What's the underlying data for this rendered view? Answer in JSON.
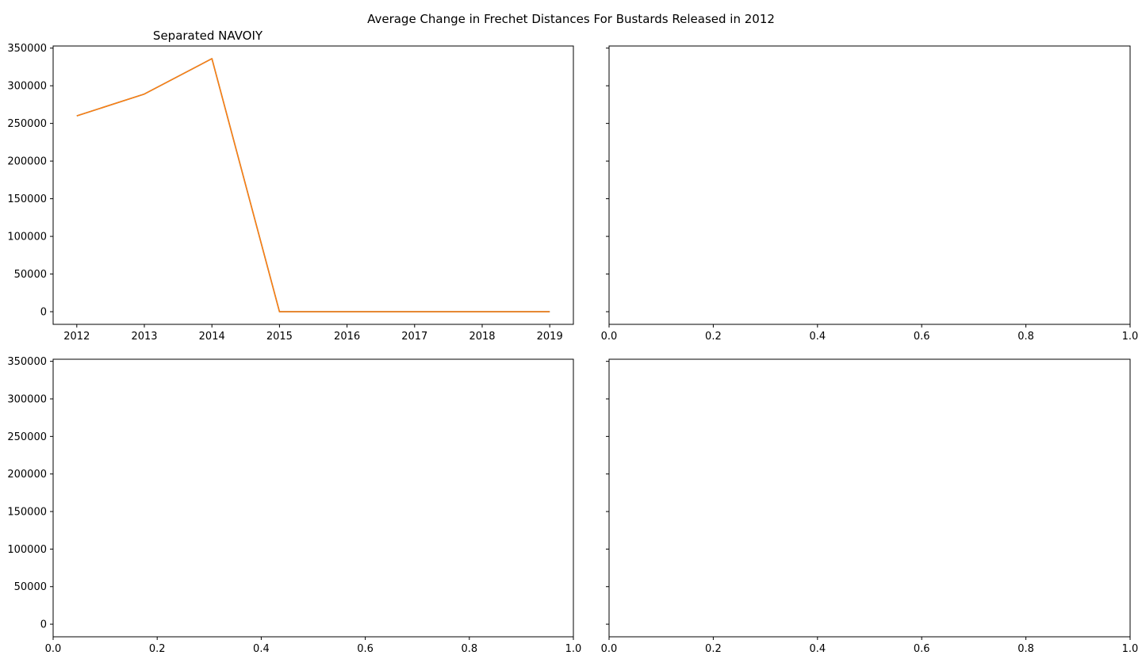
{
  "figure": {
    "suptitle": "Average Change in Frechet Distances For Bustards Released in 2012"
  },
  "chart_data": [
    {
      "type": "line",
      "title": "Separated NAVOIY",
      "xlabel": "",
      "ylabel": "",
      "x": [
        2012,
        2013,
        2014,
        2015,
        2016,
        2017,
        2018,
        2019
      ],
      "series": [
        {
          "values": [
            260000,
            289000,
            336000,
            0,
            0,
            0,
            0,
            0
          ],
          "color": "#1f77b4"
        },
        {
          "values": [
            260000,
            289000,
            336000,
            0,
            0,
            0,
            0,
            0
          ],
          "color": "#ff7f0e"
        }
      ],
      "xlim": [
        2011.65,
        2019.35
      ],
      "ylim": [
        -16800,
        352800
      ],
      "xticks": [
        "2012",
        "2013",
        "2014",
        "2015",
        "2016",
        "2017",
        "2018",
        "2019"
      ],
      "yticks": [
        "0",
        "50000",
        "100000",
        "150000",
        "200000",
        "250000",
        "300000",
        "350000"
      ],
      "grid": false
    },
    {
      "type": "line",
      "title": "",
      "series": [],
      "xlim": [
        0,
        1
      ],
      "ylim": [
        -16800,
        352800
      ],
      "xticks": [
        "0.0",
        "0.2",
        "0.4",
        "0.6",
        "0.8",
        "1.0"
      ],
      "yticks": [],
      "grid": false
    },
    {
      "type": "line",
      "title": "",
      "series": [],
      "xlim": [
        0,
        1
      ],
      "ylim": [
        -16800,
        352800
      ],
      "xticks": [
        "0.0",
        "0.2",
        "0.4",
        "0.6",
        "0.8",
        "1.0"
      ],
      "yticks": [
        "0",
        "50000",
        "100000",
        "150000",
        "200000",
        "250000",
        "300000",
        "350000"
      ],
      "grid": false
    },
    {
      "type": "line",
      "title": "",
      "series": [],
      "xlim": [
        0,
        1
      ],
      "ylim": [
        -16800,
        352800
      ],
      "xticks": [
        "0.0",
        "0.2",
        "0.4",
        "0.6",
        "0.8",
        "1.0"
      ],
      "yticks": [],
      "grid": false
    }
  ]
}
